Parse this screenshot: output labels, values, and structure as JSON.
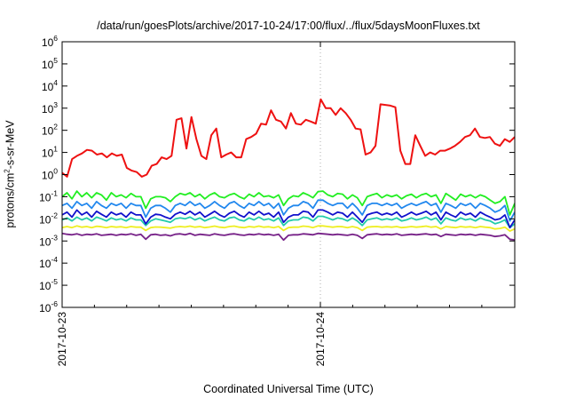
{
  "chart_data": {
    "type": "line",
    "title": "/data/run/goesPlots/archive/2017-10-24/17:00/flux/../flux/5daysMoonFluxes.txt",
    "xlabel": "Coordinated Universal Time (UTC)",
    "ylabel": {
      "base": "protons/cm",
      "exp": "2",
      "rest": "-s-sr-MeV"
    },
    "yscale": "log",
    "ylim_exp": [
      -6,
      6
    ],
    "y_tick_exponents": [
      -6,
      -5,
      -4,
      -3,
      -2,
      -1,
      0,
      1,
      2,
      3,
      4,
      5,
      6
    ],
    "x_tick_labels": [
      "2017-10-23",
      "2017-10-24"
    ],
    "grid": "x-major-dotted",
    "legend": "none",
    "series": [
      {
        "color": "#ee1111",
        "values": [
          1.2,
          0.8,
          5,
          7,
          9,
          13,
          12,
          8,
          9,
          6,
          9,
          7,
          8,
          2,
          1.5,
          1.3,
          0.8,
          1,
          2.5,
          3,
          6,
          5,
          7,
          300,
          350,
          15,
          400,
          40,
          7,
          5,
          60,
          120,
          6,
          8,
          10,
          6,
          6,
          40,
          50,
          70,
          200,
          180,
          800,
          300,
          250,
          120,
          600,
          200,
          180,
          300,
          250,
          200,
          2500,
          1000,
          1000,
          500,
          1000,
          600,
          300,
          120,
          110,
          8,
          10,
          20,
          1500,
          1400,
          1300,
          1100,
          12,
          3,
          3,
          60,
          20,
          7,
          10,
          8,
          12,
          12,
          15,
          20,
          30,
          50,
          60,
          120,
          50,
          45,
          50,
          25,
          20,
          40,
          30,
          50
        ]
      },
      {
        "color": "#22ee22",
        "values": [
          0.1,
          0.15,
          0.08,
          0.18,
          0.1,
          0.15,
          0.09,
          0.15,
          0.12,
          0.07,
          0.15,
          0.1,
          0.12,
          0.09,
          0.14,
          0.1,
          0.1,
          0.03,
          0.08,
          0.1,
          0.1,
          0.09,
          0.06,
          0.1,
          0.14,
          0.12,
          0.15,
          0.1,
          0.13,
          0.08,
          0.12,
          0.15,
          0.1,
          0.09,
          0.12,
          0.14,
          0.1,
          0.08,
          0.13,
          0.1,
          0.15,
          0.1,
          0.11,
          0.09,
          0.12,
          0.04,
          0.08,
          0.11,
          0.1,
          0.15,
          0.12,
          0.09,
          0.17,
          0.18,
          0.12,
          0.1,
          0.14,
          0.13,
          0.08,
          0.12,
          0.09,
          0.04,
          0.1,
          0.12,
          0.14,
          0.09,
          0.12,
          0.1,
          0.12,
          0.08,
          0.11,
          0.13,
          0.09,
          0.12,
          0.14,
          0.1,
          0.12,
          0.05,
          0.14,
          0.1,
          0.07,
          0.13,
          0.1,
          0.12,
          0.09,
          0.12,
          0.1,
          0.07,
          0.05,
          0.06,
          0.1,
          0.015,
          0.05
        ]
      },
      {
        "color": "#2288ee",
        "values": [
          0.04,
          0.05,
          0.03,
          0.06,
          0.04,
          0.05,
          0.03,
          0.06,
          0.04,
          0.03,
          0.05,
          0.04,
          0.05,
          0.03,
          0.05,
          0.04,
          0.04,
          0.012,
          0.03,
          0.04,
          0.04,
          0.03,
          0.02,
          0.04,
          0.05,
          0.04,
          0.06,
          0.04,
          0.05,
          0.03,
          0.04,
          0.06,
          0.04,
          0.03,
          0.05,
          0.06,
          0.04,
          0.03,
          0.05,
          0.04,
          0.06,
          0.04,
          0.05,
          0.03,
          0.05,
          0.015,
          0.03,
          0.04,
          0.04,
          0.06,
          0.05,
          0.03,
          0.07,
          0.07,
          0.05,
          0.04,
          0.05,
          0.05,
          0.03,
          0.05,
          0.03,
          0.015,
          0.04,
          0.05,
          0.05,
          0.04,
          0.05,
          0.04,
          0.05,
          0.03,
          0.04,
          0.05,
          0.04,
          0.05,
          0.06,
          0.04,
          0.05,
          0.02,
          0.05,
          0.04,
          0.03,
          0.05,
          0.04,
          0.05,
          0.03,
          0.05,
          0.04,
          0.03,
          0.02,
          0.025,
          0.04,
          0.008,
          0.02
        ]
      },
      {
        "color": "#1111cc",
        "values": [
          0.015,
          0.02,
          0.012,
          0.025,
          0.015,
          0.02,
          0.012,
          0.022,
          0.016,
          0.012,
          0.02,
          0.015,
          0.018,
          0.012,
          0.02,
          0.015,
          0.015,
          0.006,
          0.012,
          0.016,
          0.015,
          0.012,
          0.01,
          0.016,
          0.02,
          0.016,
          0.022,
          0.015,
          0.02,
          0.012,
          0.016,
          0.022,
          0.015,
          0.012,
          0.018,
          0.022,
          0.015,
          0.012,
          0.02,
          0.015,
          0.022,
          0.015,
          0.018,
          0.012,
          0.02,
          0.007,
          0.012,
          0.015,
          0.015,
          0.022,
          0.02,
          0.012,
          0.025,
          0.025,
          0.02,
          0.015,
          0.02,
          0.018,
          0.012,
          0.02,
          0.012,
          0.007,
          0.015,
          0.018,
          0.02,
          0.015,
          0.018,
          0.015,
          0.02,
          0.012,
          0.015,
          0.02,
          0.015,
          0.018,
          0.022,
          0.015,
          0.02,
          0.009,
          0.02,
          0.015,
          0.012,
          0.02,
          0.015,
          0.018,
          0.012,
          0.02,
          0.015,
          0.012,
          0.009,
          0.01,
          0.015,
          0.004,
          0.009
        ]
      },
      {
        "color": "#22ccaa",
        "values": [
          0.009,
          0.011,
          0.008,
          0.012,
          0.009,
          0.011,
          0.008,
          0.012,
          0.01,
          0.008,
          0.011,
          0.009,
          0.01,
          0.008,
          0.011,
          0.009,
          0.009,
          0.005,
          0.008,
          0.01,
          0.009,
          0.008,
          0.007,
          0.01,
          0.011,
          0.01,
          0.012,
          0.009,
          0.011,
          0.008,
          0.01,
          0.012,
          0.009,
          0.008,
          0.011,
          0.012,
          0.009,
          0.008,
          0.011,
          0.009,
          0.012,
          0.009,
          0.01,
          0.008,
          0.011,
          0.005,
          0.008,
          0.009,
          0.009,
          0.012,
          0.011,
          0.008,
          0.013,
          0.013,
          0.011,
          0.009,
          0.011,
          0.01,
          0.008,
          0.011,
          0.008,
          0.005,
          0.009,
          0.01,
          0.011,
          0.009,
          0.01,
          0.009,
          0.011,
          0.008,
          0.009,
          0.011,
          0.009,
          0.01,
          0.012,
          0.009,
          0.011,
          0.006,
          0.011,
          0.009,
          0.008,
          0.011,
          0.009,
          0.01,
          0.008,
          0.011,
          0.009,
          0.008,
          0.006,
          0.007,
          0.009,
          0.004,
          0.006
        ]
      },
      {
        "color": "#eeee22",
        "values": [
          0.004,
          0.0045,
          0.004,
          0.0048,
          0.0042,
          0.0045,
          0.004,
          0.0046,
          0.0044,
          0.004,
          0.0045,
          0.0042,
          0.0044,
          0.004,
          0.0045,
          0.0042,
          0.0042,
          0.003,
          0.004,
          0.0043,
          0.0042,
          0.004,
          0.0038,
          0.0043,
          0.0045,
          0.0043,
          0.0047,
          0.0042,
          0.0045,
          0.004,
          0.0043,
          0.0047,
          0.0042,
          0.004,
          0.0045,
          0.0047,
          0.0042,
          0.004,
          0.0045,
          0.0042,
          0.0047,
          0.0042,
          0.0044,
          0.004,
          0.0045,
          0.003,
          0.004,
          0.0042,
          0.0042,
          0.0047,
          0.0045,
          0.004,
          0.0048,
          0.0048,
          0.0045,
          0.0042,
          0.0045,
          0.0044,
          0.004,
          0.0045,
          0.004,
          0.003,
          0.0042,
          0.0044,
          0.0045,
          0.0042,
          0.0044,
          0.0042,
          0.0045,
          0.004,
          0.0042,
          0.0045,
          0.0042,
          0.0044,
          0.0047,
          0.0042,
          0.0045,
          0.0035,
          0.0045,
          0.0042,
          0.004,
          0.0045,
          0.0042,
          0.0044,
          0.004,
          0.0045,
          0.0042,
          0.004,
          0.0035,
          0.0037,
          0.0042,
          0.0028,
          0.0035
        ]
      },
      {
        "color": "#772288",
        "values": [
          0.0022,
          0.002,
          0.0019,
          0.0021,
          0.0018,
          0.002,
          0.0019,
          0.0021,
          0.0018,
          0.0019,
          0.002,
          0.0018,
          0.002,
          0.0019,
          0.0021,
          0.0018,
          0.002,
          0.0012,
          0.0019,
          0.002,
          0.0018,
          0.0019,
          0.0017,
          0.002,
          0.0021,
          0.0019,
          0.0022,
          0.0018,
          0.002,
          0.0019,
          0.0018,
          0.0021,
          0.0019,
          0.0018,
          0.002,
          0.0021,
          0.0019,
          0.0018,
          0.002,
          0.0019,
          0.0021,
          0.0019,
          0.002,
          0.0018,
          0.002,
          0.0011,
          0.0018,
          0.0019,
          0.0019,
          0.0021,
          0.002,
          0.0019,
          0.0022,
          0.0021,
          0.002,
          0.0019,
          0.002,
          0.0019,
          0.0018,
          0.002,
          0.0018,
          0.0013,
          0.0019,
          0.002,
          0.0021,
          0.0019,
          0.002,
          0.0019,
          0.0021,
          0.0018,
          0.0019,
          0.002,
          0.0019,
          0.002,
          0.0021,
          0.0019,
          0.002,
          0.0016,
          0.002,
          0.0019,
          0.0018,
          0.002,
          0.0019,
          0.002,
          0.0018,
          0.002,
          0.0019,
          0.0018,
          0.0016,
          0.0017,
          0.0019,
          0.0012,
          0.0011
        ]
      }
    ]
  }
}
